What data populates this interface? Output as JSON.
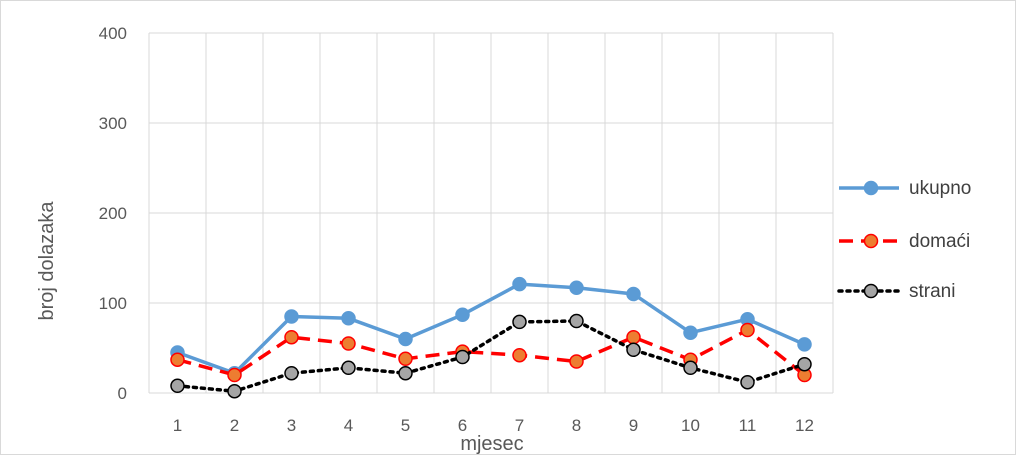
{
  "chart_data": {
    "type": "line",
    "title": "",
    "xlabel": "mjesec",
    "ylabel": "broj dolazaka",
    "categories": [
      "1",
      "2",
      "3",
      "4",
      "5",
      "6",
      "7",
      "8",
      "9",
      "10",
      "11",
      "12"
    ],
    "ylim": [
      0,
      400
    ],
    "yticks": [
      "0",
      "100",
      "200",
      "300",
      "400"
    ],
    "grid": true,
    "legend_position": "right",
    "series": [
      {
        "name": "ukupno",
        "color": "#5b9bd5",
        "marker_fill": "#5b9bd5",
        "marker_stroke": "#5b9bd5",
        "line_style": "solid",
        "values": [
          45,
          22,
          85,
          83,
          60,
          87,
          121,
          117,
          110,
          67,
          82,
          54
        ]
      },
      {
        "name": "domaći",
        "color": "#ff0000",
        "marker_fill": "#ed7d31",
        "marker_stroke": "#ff0000",
        "line_style": "dashed",
        "values": [
          37,
          20,
          62,
          55,
          38,
          46,
          42,
          35,
          62,
          37,
          70,
          20
        ]
      },
      {
        "name": "strani",
        "color": "#000000",
        "marker_fill": "#a5a5a5",
        "marker_stroke": "#000000",
        "line_style": "dotted",
        "values": [
          8,
          2,
          22,
          28,
          22,
          40,
          79,
          80,
          48,
          28,
          12,
          32
        ]
      }
    ]
  }
}
